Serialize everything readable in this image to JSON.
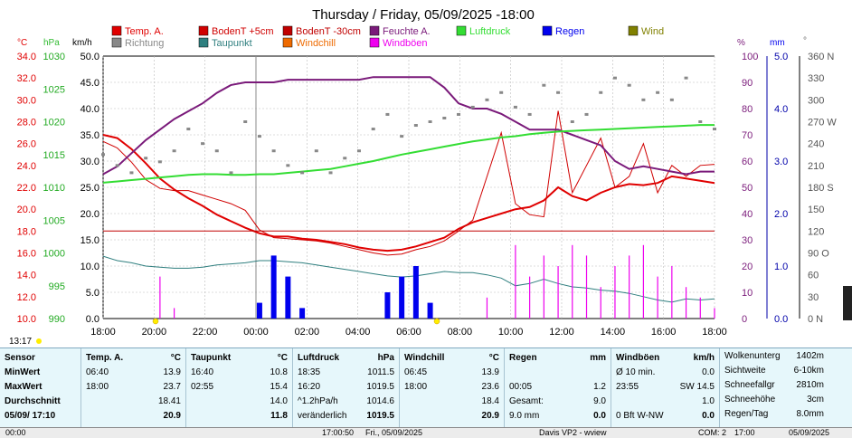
{
  "title": "Thursday / Friday, 05/09/2025  -18:00",
  "units": {
    "temp": "°C",
    "hpa": "hPa",
    "kmh": "km/h",
    "pct": "%",
    "mm": "mm",
    "deg": "°"
  },
  "legend": [
    {
      "label": "Temp. A.",
      "color": "#e00000"
    },
    {
      "label": "BodenT +5cm",
      "color": "#d00000"
    },
    {
      "label": "BodenT -30cm",
      "color": "#c00000"
    },
    {
      "label": "Feuchte A.",
      "color": "#7a1a7a"
    },
    {
      "label": "Luftdruck",
      "color": "#33dd33"
    },
    {
      "label": "Regen",
      "color": "#0000ee"
    },
    {
      "label": "Wind",
      "color": "#808000"
    },
    {
      "label": "Richtung",
      "color": "#888888"
    },
    {
      "label": "Taupunkt",
      "color": "#2f7f7f"
    },
    {
      "label": "Windchill",
      "color": "#ee6a00"
    },
    {
      "label": "Windböen",
      "color": "#ee00ee"
    }
  ],
  "axes": {
    "temp_ticks": [
      "34.0",
      "32.0",
      "30.0",
      "28.0",
      "26.0",
      "24.0",
      "22.0",
      "20.0",
      "18.0",
      "16.0",
      "14.0",
      "12.0",
      "10.0"
    ],
    "hpa_ticks": [
      "1030",
      "1025",
      "1020",
      "1015",
      "1010",
      "1005",
      "1000",
      "995",
      "990"
    ],
    "kmh_ticks": [
      "50.0",
      "45.0",
      "40.0",
      "35.0",
      "30.0",
      "25.0",
      "20.0",
      "15.0",
      "10.0",
      "5.0",
      "0.0"
    ],
    "pct_ticks": [
      "100",
      "90",
      "80",
      "70",
      "60",
      "50",
      "40",
      "30",
      "20",
      "10",
      "0"
    ],
    "mm_ticks": [
      "5.0",
      "4.0",
      "3.0",
      "2.0",
      "1.0",
      "0.0"
    ],
    "dir_ticks": [
      "360 N",
      "330",
      "300",
      "270 W",
      "240",
      "210",
      "180 S",
      "150",
      "120",
      "90 O",
      "60",
      "30",
      "0 N"
    ],
    "time_ticks": [
      "18:00",
      "20:00",
      "22:00",
      "00:00",
      "02:00",
      "04:00",
      "06:00",
      "08:00",
      "10:00",
      "12:00",
      "14:00",
      "16:00",
      "18:00"
    ]
  },
  "chart_data": {
    "type": "line",
    "x_range": [
      "18:00",
      "18:00"
    ],
    "series": [
      {
        "name": "Temp. A.",
        "axis": "temp",
        "values": [
          26.8,
          26.5,
          25.5,
          24.2,
          22.8,
          21.8,
          21.0,
          20.3,
          19.5,
          18.9,
          18.3,
          17.8,
          17.5,
          17.5,
          17.3,
          17.2,
          17.0,
          16.8,
          16.5,
          16.3,
          16.2,
          16.3,
          16.6,
          17.0,
          17.4,
          18.2,
          18.8,
          19.2,
          19.6,
          20.0,
          20.2,
          20.8,
          22.0,
          21.2,
          20.8,
          21.5,
          22.0,
          22.3,
          22.2,
          22.4,
          23.0,
          22.8,
          22.6,
          22.4
        ]
      },
      {
        "name": "BodenT +5cm",
        "axis": "temp",
        "values": [
          26.2,
          25.6,
          24.3,
          22.7,
          21.9,
          21.7,
          21.7,
          21.3,
          20.9,
          20.5,
          19.9,
          18.1,
          17.4,
          17.3,
          17.2,
          17.1,
          16.9,
          16.6,
          16.3,
          16.0,
          15.8,
          15.9,
          16.3,
          16.6,
          17.1,
          18.0,
          19.0,
          23.0,
          27.0,
          20.5,
          19.5,
          19.3,
          29.0,
          21.5,
          24.0,
          26.5,
          22.0,
          23.0,
          26.0,
          21.5,
          24.0,
          23.0,
          24.0,
          24.1
        ]
      },
      {
        "name": "BodenT -30cm",
        "axis": "temp",
        "values": [
          18.0,
          18.0,
          18.0,
          18.0,
          18.0,
          18.0,
          18.0,
          18.0,
          18.0,
          18.0,
          18.0,
          18.0,
          18.0,
          18.0,
          18.0,
          18.0,
          18.0,
          18.0,
          18.0,
          18.0,
          18.0,
          18.0,
          18.0,
          18.0,
          18.0,
          18.0,
          18.0,
          18.0,
          18.0,
          18.0,
          18.0,
          18.0,
          18.0,
          18.0,
          18.0,
          18.0,
          18.0,
          18.0,
          18.0,
          18.0,
          18.0,
          18.0,
          18.0,
          18.0
        ]
      },
      {
        "name": "Feuchte A.",
        "axis": "pct",
        "values": [
          55,
          58,
          63,
          68,
          72,
          76,
          79,
          82,
          86,
          89,
          90,
          90,
          90,
          91,
          91,
          91,
          91,
          91,
          91,
          92,
          92,
          92,
          92,
          92,
          88,
          82,
          80,
          80,
          78,
          75,
          72,
          72,
          72,
          70,
          68,
          66,
          60,
          57,
          58,
          57,
          56,
          55,
          56,
          56
        ]
      },
      {
        "name": "Luftdruck",
        "axis": "hpa",
        "values": [
          1010.7,
          1010.9,
          1011.1,
          1011.3,
          1011.5,
          1011.7,
          1011.9,
          1012.0,
          1012.0,
          1011.9,
          1011.9,
          1012.0,
          1012.0,
          1012.2,
          1012.4,
          1012.6,
          1012.8,
          1013.2,
          1013.6,
          1014.0,
          1014.5,
          1015.0,
          1015.4,
          1015.8,
          1016.2,
          1016.6,
          1017.0,
          1017.3,
          1017.6,
          1017.8,
          1018.1,
          1018.3,
          1018.5,
          1018.6,
          1018.7,
          1018.8,
          1018.9,
          1019.0,
          1019.1,
          1019.2,
          1019.3,
          1019.4,
          1019.5,
          1019.5
        ]
      },
      {
        "name": "Taupunkt",
        "axis": "temp",
        "values": [
          15.7,
          15.3,
          15.1,
          14.8,
          14.7,
          14.6,
          14.6,
          14.7,
          14.9,
          15.0,
          15.1,
          15.3,
          15.3,
          15.2,
          15.1,
          14.9,
          14.7,
          14.5,
          14.3,
          14.1,
          13.9,
          13.8,
          13.9,
          14.1,
          14.3,
          14.2,
          14.2,
          14.0,
          13.7,
          13.0,
          13.2,
          13.6,
          13.2,
          12.9,
          12.8,
          12.6,
          12.5,
          12.3,
          12.0,
          11.7,
          11.5,
          11.8,
          11.7,
          11.8
        ]
      },
      {
        "name": "Regen",
        "axis": "mm",
        "values": [
          0,
          0,
          0,
          0,
          0,
          0,
          0,
          0,
          0,
          0,
          0,
          0.3,
          1.2,
          0.8,
          0.2,
          0,
          0,
          0,
          0,
          0,
          0.5,
          0.8,
          1.0,
          0.3,
          0,
          0,
          0,
          0,
          0,
          0,
          0,
          0,
          0,
          0,
          0,
          0,
          0,
          0,
          0,
          0,
          0,
          0,
          0,
          0
        ]
      },
      {
        "name": "Windböen",
        "axis": "kmh",
        "values": [
          0,
          0,
          0,
          0,
          8,
          2,
          0,
          0,
          0,
          0,
          0,
          0,
          0,
          0,
          0,
          0,
          0,
          0,
          0,
          0,
          0,
          0,
          0,
          0,
          0,
          0,
          0,
          4,
          0,
          14,
          8,
          12,
          10,
          14,
          12,
          6,
          10,
          12,
          14,
          8,
          10,
          6,
          4,
          2
        ]
      },
      {
        "name": "Richtung",
        "axis": "deg",
        "values": [
          225,
          210,
          200,
          220,
          215,
          230,
          260,
          240,
          230,
          200,
          270,
          250,
          230,
          210,
          200,
          230,
          200,
          220,
          230,
          260,
          280,
          250,
          265,
          270,
          275,
          280,
          290,
          300,
          310,
          290,
          280,
          320,
          310,
          270,
          280,
          310,
          330,
          320,
          300,
          310,
          300,
          330,
          270,
          260
        ]
      }
    ]
  },
  "info_bar": {
    "time": "13:17"
  },
  "stats": {
    "sensor": {
      "head": "Sensor",
      "rows": [
        "MinWert",
        "MaxWert",
        "Durchschnitt",
        "05/09/ 17:10"
      ]
    },
    "temp": {
      "head": "Temp. A.",
      "unit": "°C",
      "rows": [
        [
          "06:40",
          "13.9"
        ],
        [
          "18:00",
          "23.7"
        ],
        [
          "",
          "18.41"
        ],
        [
          "",
          "20.9"
        ]
      ]
    },
    "taupunkt": {
      "head": "Taupunkt",
      "unit": "°C",
      "rows": [
        [
          "16:40",
          "10.8"
        ],
        [
          "02:55",
          "15.4"
        ],
        [
          "",
          "14.0"
        ],
        [
          "",
          "11.8"
        ]
      ]
    },
    "luftdruck": {
      "head": "Luftdruck",
      "unit": "hPa",
      "rows": [
        [
          "18:35",
          "1011.5"
        ],
        [
          "16:20",
          "1019.5"
        ],
        [
          "^1.2hPa/h",
          "1014.6"
        ],
        [
          "veränderlich",
          "1019.5"
        ]
      ]
    },
    "windchill": {
      "head": "Windchill",
      "unit": "°C",
      "rows": [
        [
          "06:45",
          "13.9"
        ],
        [
          "18:00",
          "23.6"
        ],
        [
          "",
          "18.4"
        ],
        [
          "",
          "20.9"
        ]
      ]
    },
    "regen": {
      "head": "Regen",
      "unit": "mm",
      "rows": [
        [
          "",
          ""
        ],
        [
          "00:05",
          "1.2"
        ],
        [
          "Gesamt:",
          "9.0"
        ],
        [
          "9.0 mm",
          "0.0"
        ]
      ]
    },
    "windboen": {
      "head": "Windböen",
      "unit": "km/h",
      "rows": [
        [
          "Ø 10 min.",
          "0.0"
        ],
        [
          "23:55",
          "SW 14.5"
        ],
        [
          "",
          "1.0"
        ],
        [
          "0 Bft W-NW",
          "0.0"
        ]
      ]
    },
    "extra": {
      "rows": [
        [
          "Wolkenunterg",
          "1402m"
        ],
        [
          "Sichtweite",
          "6-10km"
        ],
        [
          "Schneefallgr",
          "2810m"
        ],
        [
          "Schneehöhe",
          "3cm"
        ],
        [
          "Regen/Tag",
          "8.0mm"
        ]
      ]
    }
  },
  "status_bar": {
    "left": "00:00",
    "mid1": "17:00:50",
    "mid2": "Fri., 05/09/2025",
    "mid3": "Davis VP2 - wview",
    "right1": "COM: 2",
    "right2": "17:00",
    "right3": "05/09/2025"
  }
}
